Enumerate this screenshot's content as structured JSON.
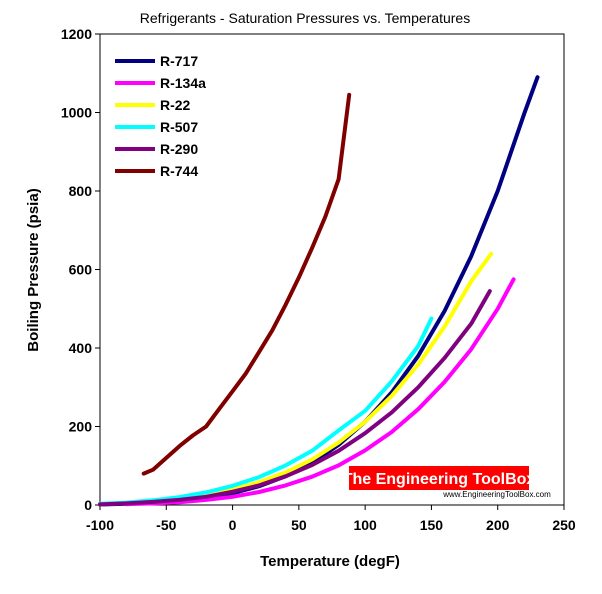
{
  "chart_data": {
    "type": "line",
    "title": "Refrigerants - Saturation Pressures vs. Temperatures",
    "xlabel": "Temperature (degF)",
    "ylabel": "Boiling Pressure (psia)",
    "xlim": [
      -100,
      250
    ],
    "ylim": [
      0,
      1200
    ],
    "xticks": [
      -100,
      -50,
      0,
      50,
      100,
      150,
      200,
      250
    ],
    "yticks": [
      0,
      200,
      400,
      600,
      800,
      1000,
      1200
    ],
    "grid": false,
    "legend_position": "top-left",
    "series": [
      {
        "name": "R-717",
        "color": "#000080",
        "x": [
          -100,
          -80,
          -60,
          -40,
          -20,
          0,
          20,
          40,
          60,
          80,
          100,
          120,
          140,
          160,
          180,
          200,
          220,
          230
        ],
        "y": [
          1.2,
          3,
          6,
          10,
          18,
          30,
          48,
          73,
          107,
          153,
          212,
          287,
          380,
          495,
          634,
          800,
          997,
          1090
        ]
      },
      {
        "name": "R-134a",
        "color": "#ff00ff",
        "x": [
          -80,
          -60,
          -40,
          -20,
          0,
          20,
          40,
          60,
          80,
          100,
          120,
          140,
          160,
          180,
          200,
          212
        ],
        "y": [
          2,
          4,
          7,
          13,
          21,
          33,
          50,
          72,
          101,
          139,
          186,
          244,
          314,
          397,
          500,
          575
        ]
      },
      {
        "name": "R-22",
        "color": "#ffff00",
        "x": [
          -100,
          -80,
          -60,
          -40,
          -20,
          0,
          20,
          40,
          60,
          80,
          100,
          120,
          140,
          160,
          180,
          195
        ],
        "y": [
          2,
          5,
          9,
          15,
          25,
          39,
          58,
          83,
          116,
          159,
          212,
          278,
          358,
          455,
          570,
          640
        ]
      },
      {
        "name": "R-507",
        "color": "#00ffff",
        "x": [
          -100,
          -80,
          -60,
          -40,
          -20,
          0,
          20,
          40,
          60,
          80,
          100,
          120,
          140,
          150
        ],
        "y": [
          3,
          6,
          12,
          20,
          32,
          49,
          71,
          101,
          138,
          190,
          240,
          315,
          405,
          475
        ]
      },
      {
        "name": "R-290",
        "color": "#800080",
        "x": [
          -100,
          -80,
          -60,
          -40,
          -20,
          0,
          20,
          40,
          60,
          80,
          100,
          120,
          140,
          160,
          180,
          194
        ],
        "y": [
          1.5,
          4,
          8,
          13,
          21,
          34,
          50,
          73,
          102,
          138,
          183,
          236,
          300,
          375,
          462,
          545
        ]
      },
      {
        "name": "R-744",
        "color": "#800000",
        "x": [
          -67,
          -60,
          -50,
          -40,
          -30,
          -20,
          -10,
          0,
          10,
          20,
          30,
          40,
          50,
          60,
          70,
          80,
          88
        ],
        "y": [
          80,
          90,
          120,
          150,
          177,
          200,
          245,
          290,
          335,
          390,
          445,
          510,
          580,
          655,
          735,
          830,
          1045
        ]
      }
    ]
  },
  "watermark": {
    "main": "The Engineering ToolBox",
    "sub": "www.EngineeringToolBox.com",
    "bg_color": "#ff0000"
  }
}
